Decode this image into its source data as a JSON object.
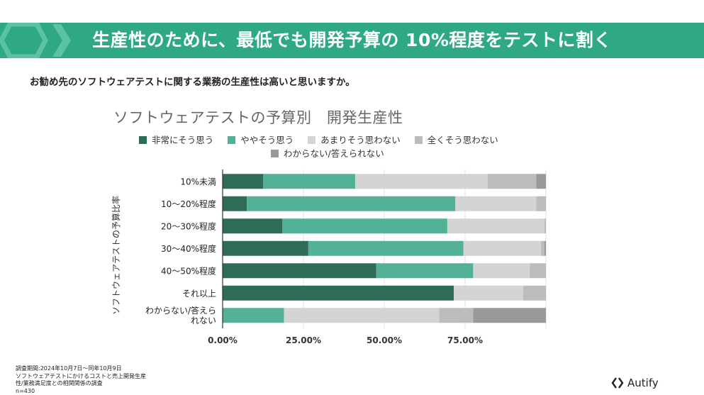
{
  "header": {
    "title": "生産性のために、最低でも開発予算の 10%程度をテストに割く"
  },
  "question": "お勧め先のソフトウェアテストに関する業務の生産性は高いと思いますか。",
  "colors": {
    "banner": "#2fa886",
    "series": [
      "#2e6b58",
      "#52b197",
      "#d4d4d4",
      "#bcbcbc",
      "#999999"
    ]
  },
  "chart_data": {
    "type": "bar",
    "orientation": "horizontal",
    "stacked": true,
    "title": "ソフトウェアテストの予算別　開発生産性",
    "ylabel": "ソフトウェアテストの予算比率",
    "xlabel": "",
    "xlim": [
      0,
      100
    ],
    "x_ticks": [
      "0.00%",
      "25.00%",
      "50.00%",
      "75.00%"
    ],
    "legend_position": "top",
    "grid": true,
    "categories": [
      "10%未満",
      "10～20%程度",
      "20～30%程度",
      "30～40%程度",
      "40～50%程度",
      "それ以上",
      "わからない/答えられない"
    ],
    "series": [
      {
        "name": "非常にそう思う",
        "values": [
          12.5,
          7.5,
          18.5,
          26.5,
          47.5,
          71.5,
          0
        ]
      },
      {
        "name": "ややそう思う",
        "values": [
          28.5,
          64.5,
          51.0,
          48.0,
          30.0,
          0,
          19.0
        ]
      },
      {
        "name": "あまりそう思わない",
        "values": [
          41.0,
          25.0,
          30.0,
          24.0,
          17.5,
          21.5,
          48.0
        ]
      },
      {
        "name": "全くそう思わない",
        "values": [
          15.0,
          3.0,
          0.5,
          1.0,
          5.0,
          7.0,
          10.5
        ]
      },
      {
        "name": "わからない/答えられない",
        "values": [
          3.0,
          0,
          0,
          0.5,
          0,
          0,
          22.5
        ]
      }
    ]
  },
  "footnote": {
    "lines": [
      "調査期間:2024年10月7日～同年10月9日",
      "ソフトウェアテストにかけるコストと売上開発生産",
      "性/業務満足度との相関関係の調査",
      "n=430"
    ]
  },
  "brand": {
    "name": "Autify"
  }
}
